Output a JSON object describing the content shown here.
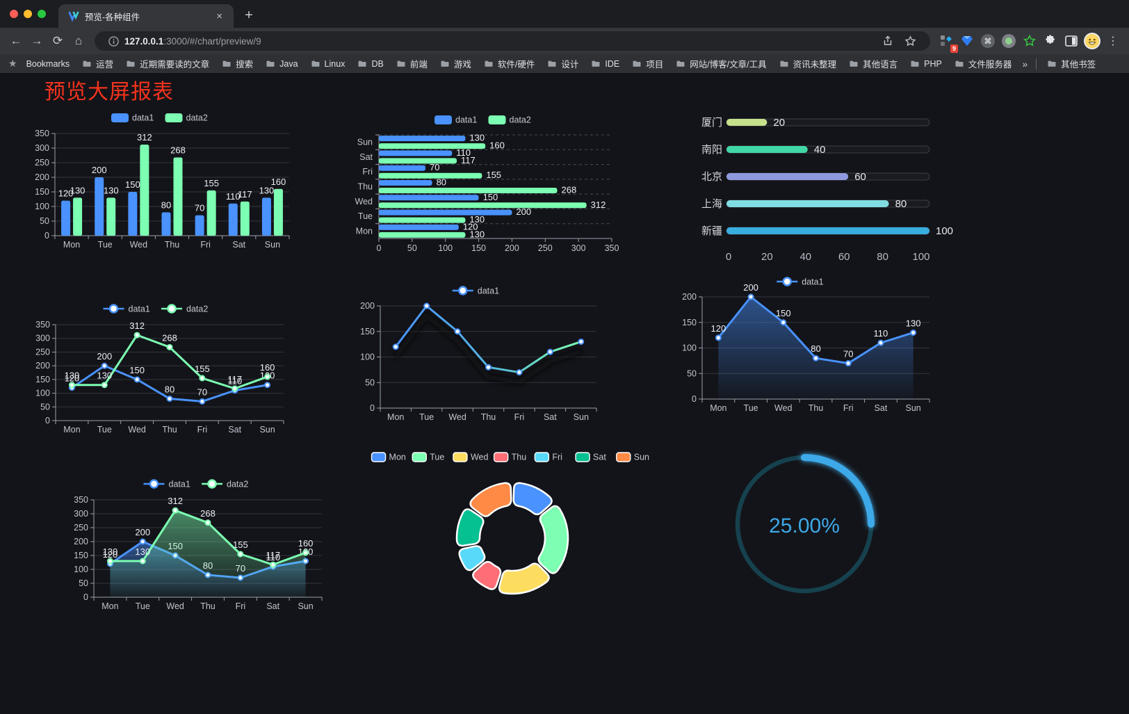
{
  "browser": {
    "tab_title": "预览-各种组件",
    "url_host": "127.0.0.1",
    "url_path": ":3000/#/chart/preview/9",
    "extension_badge": "9",
    "new_tab_label": "+"
  },
  "bookmarks": {
    "label": "Bookmarks",
    "items": [
      "运营",
      "近期需要读的文章",
      "搜索",
      "Java",
      "Linux",
      "DB",
      "前端",
      "游戏",
      "软件/硬件",
      "设计",
      "IDE",
      "项目",
      "网站/博客/文章/工具",
      "资讯未整理",
      "其他语言",
      "PHP",
      "文件服务器"
    ],
    "overflow": "»",
    "other_label": "其他书签"
  },
  "page": {
    "title": "预览大屏报表",
    "title_color": "#f5321c"
  },
  "chart_data": [
    {
      "id": "bar-grouped",
      "type": "bar",
      "categories": [
        "Mon",
        "Tue",
        "Wed",
        "Thu",
        "Fri",
        "Sat",
        "Sun"
      ],
      "series": [
        {
          "name": "data1",
          "color": "#4992ff",
          "values": [
            120,
            200,
            150,
            80,
            70,
            110,
            130
          ]
        },
        {
          "name": "data2",
          "color": "#7cffb2",
          "values": [
            130,
            130,
            312,
            268,
            155,
            117,
            160
          ]
        }
      ],
      "ylim": [
        0,
        350
      ],
      "ystep": 50,
      "grid": true,
      "legend_position": "top",
      "labels": true
    },
    {
      "id": "bar-horizontal",
      "type": "hbar",
      "categories": [
        "Mon",
        "Tue",
        "Wed",
        "Thu",
        "Fri",
        "Sat",
        "Sun"
      ],
      "display_order": "Sun at top",
      "series": [
        {
          "name": "data1",
          "color": "#4992ff",
          "values": [
            120,
            200,
            150,
            80,
            70,
            110,
            130
          ]
        },
        {
          "name": "data2",
          "color": "#7cffb2",
          "values": [
            130,
            130,
            312,
            268,
            155,
            117,
            160
          ]
        }
      ],
      "xlim": [
        0,
        350
      ],
      "xstep": 50,
      "legend_position": "top",
      "labels": true
    },
    {
      "id": "progress",
      "type": "progress",
      "max": 100,
      "axis_ticks": [
        0,
        20,
        40,
        60,
        80,
        100
      ],
      "rows": [
        {
          "label": "厦门",
          "value": 20,
          "color": "#c6e08c"
        },
        {
          "label": "南阳",
          "value": 40,
          "color": "#41d7a6"
        },
        {
          "label": "北京",
          "value": 60,
          "color": "#8f99de"
        },
        {
          "label": "上海",
          "value": 80,
          "color": "#7fdde2"
        },
        {
          "label": "新疆",
          "value": 100,
          "color": "#38aee0"
        }
      ]
    },
    {
      "id": "line-two",
      "type": "line",
      "categories": [
        "Mon",
        "Tue",
        "Wed",
        "Thu",
        "Fri",
        "Sat",
        "Sun"
      ],
      "series": [
        {
          "name": "data1",
          "color": "#4992ff",
          "values": [
            120,
            200,
            150,
            80,
            70,
            110,
            130
          ]
        },
        {
          "name": "data2",
          "color": "#7cffb2",
          "values": [
            130,
            130,
            312,
            268,
            155,
            117,
            160
          ]
        }
      ],
      "ylim": [
        0,
        350
      ],
      "ystep": 50,
      "labels": true,
      "legend_position": "top"
    },
    {
      "id": "line-gradient",
      "type": "line",
      "categories": [
        "Mon",
        "Tue",
        "Wed",
        "Thu",
        "Fri",
        "Sat",
        "Sun"
      ],
      "series": [
        {
          "name": "data1",
          "color": "#4992ff",
          "gradient": [
            "#4992ff",
            "#53b5e0",
            "#7cffb2"
          ],
          "values": [
            120,
            200,
            150,
            80,
            70,
            110,
            130
          ]
        }
      ],
      "ylim": [
        0,
        200
      ],
      "ystep": 50,
      "labels": false,
      "shadow": true,
      "legend_position": "top"
    },
    {
      "id": "area-single",
      "type": "line",
      "categories": [
        "Mon",
        "Tue",
        "Wed",
        "Thu",
        "Fri",
        "Sat",
        "Sun"
      ],
      "series": [
        {
          "name": "data1",
          "color": "#4992ff",
          "area": true,
          "values": [
            120,
            200,
            150,
            80,
            70,
            110,
            130
          ]
        }
      ],
      "ylim": [
        0,
        200
      ],
      "ystep": 50,
      "labels": true,
      "legend_position": "top"
    },
    {
      "id": "area-two",
      "type": "line",
      "categories": [
        "Mon",
        "Tue",
        "Wed",
        "Thu",
        "Fri",
        "Sat",
        "Sun"
      ],
      "series": [
        {
          "name": "data1",
          "color": "#4992ff",
          "area": true,
          "values": [
            120,
            200,
            150,
            80,
            70,
            110,
            130
          ]
        },
        {
          "name": "data2",
          "color": "#7cffb2",
          "area": true,
          "values": [
            130,
            130,
            312,
            268,
            155,
            117,
            160
          ]
        }
      ],
      "ylim": [
        0,
        350
      ],
      "ystep": 50,
      "labels": true,
      "legend_position": "top"
    },
    {
      "id": "donut",
      "type": "pie",
      "inner_radius_pct": 59,
      "legend_position": "top",
      "items": [
        {
          "name": "Mon",
          "value": 120,
          "color": "#4992ff"
        },
        {
          "name": "Tue",
          "value": 200,
          "color": "#7cffb2"
        },
        {
          "name": "Wed",
          "value": 150,
          "color": "#fddd60"
        },
        {
          "name": "Thu",
          "value": 80,
          "color": "#ff6e76"
        },
        {
          "name": "Fri",
          "value": 70,
          "color": "#58d9f9"
        },
        {
          "name": "Sat",
          "value": 110,
          "color": "#05c091"
        },
        {
          "name": "Sun",
          "value": 130,
          "color": "#ff8a45"
        }
      ]
    },
    {
      "id": "gauge",
      "type": "gauge",
      "percent": 25,
      "label": "25.00%",
      "color": "#3da9e8",
      "track_color": "#16414e",
      "start": "top",
      "direction": "clockwise"
    }
  ]
}
